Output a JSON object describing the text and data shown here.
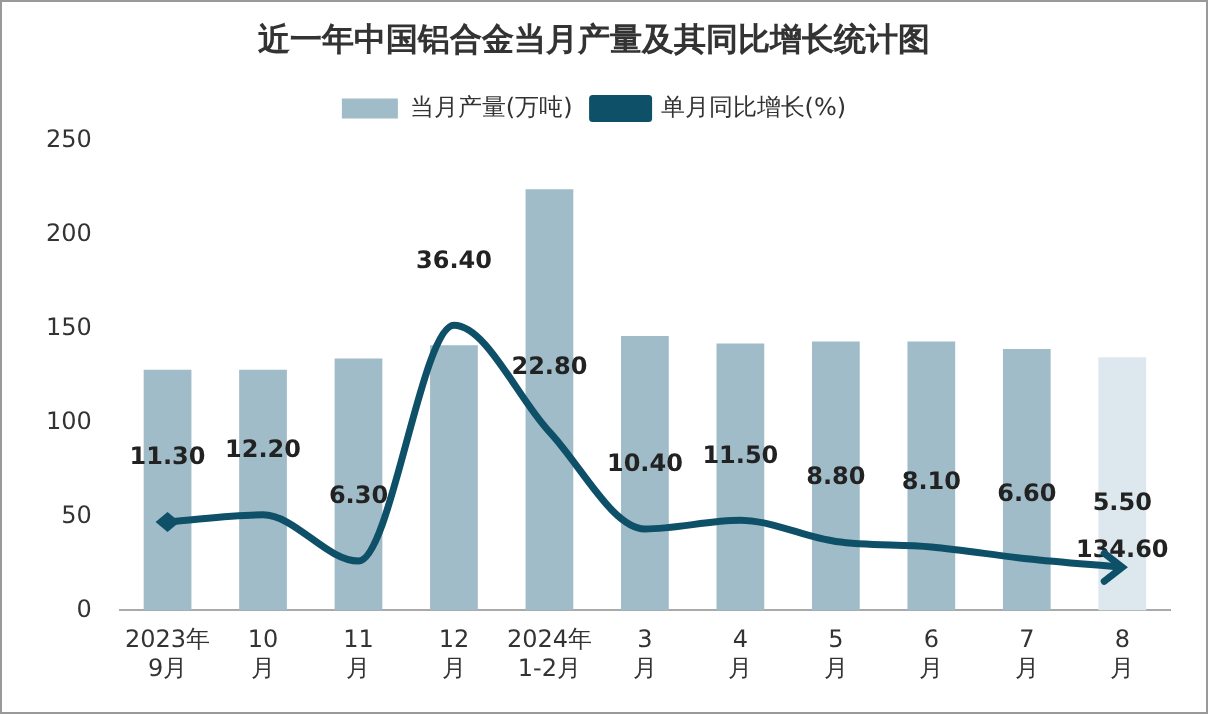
{
  "chart_data": {
    "type": "bar",
    "title": "近一年中国铝合金当月产量及其同比增长统计图",
    "categories": [
      "2023年\n9月",
      "10\n月",
      "11\n月",
      "12\n月",
      "2024年\n1-2月",
      "3\n月",
      "4\n月",
      "5\n月",
      "6\n月",
      "7\n月",
      "8\n月"
    ],
    "series": [
      {
        "name": "当月产量(万吨)",
        "color": "#9fbcc8",
        "colors": [
          "#9fbcc8",
          "#9fbcc8",
          "#9fbcc8",
          "#9fbcc8",
          "#9fbcc8",
          "#9fbcc8",
          "#9fbcc8",
          "#9fbcc8",
          "#9fbcc8",
          "#9fbcc8",
          "#dce8ee"
        ],
        "values": [
          128,
          128,
          134,
          141,
          224,
          146,
          142,
          143,
          143,
          139,
          134.6
        ],
        "value_labels": [
          null,
          null,
          null,
          null,
          null,
          null,
          null,
          null,
          null,
          null,
          "134.60"
        ]
      },
      {
        "name": "单月同比增长(%)",
        "type": "line",
        "axis": "y2",
        "color": "#0e5068",
        "values": [
          11.3,
          12.2,
          6.3,
          36.4,
          22.8,
          10.4,
          11.5,
          8.8,
          8.1,
          6.6,
          5.5
        ],
        "value_labels": [
          "11.30",
          "12.20",
          "6.30",
          "36.40",
          "22.80",
          "10.40",
          "11.50",
          "8.80",
          "8.10",
          "6.60",
          "5.50"
        ]
      }
    ],
    "ylim": [
      0,
      250
    ],
    "yticks": [
      0,
      50,
      100,
      150,
      200,
      250
    ],
    "tick_labels": "xy",
    "grid": false,
    "legend": "top"
  }
}
